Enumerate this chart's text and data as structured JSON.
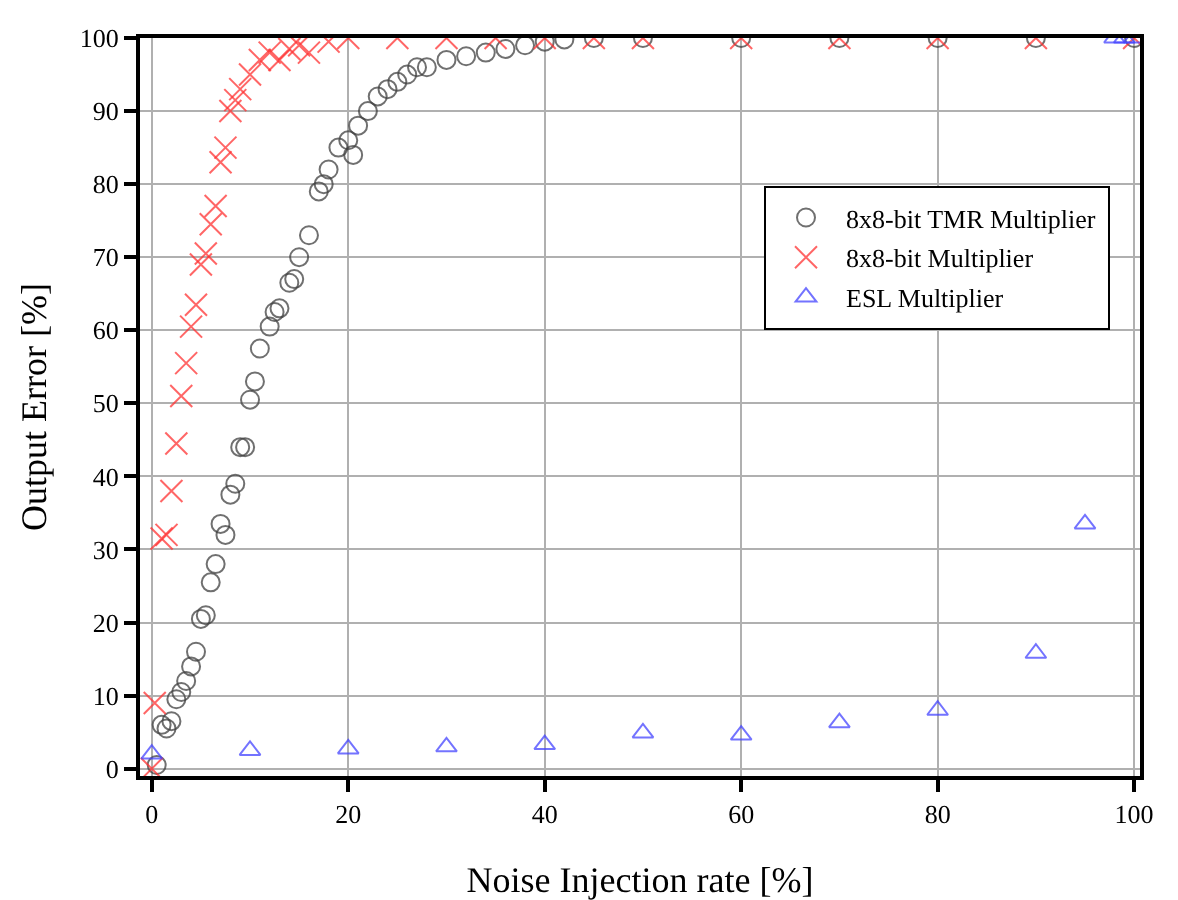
{
  "chart_data": {
    "type": "scatter",
    "xlabel": "Noise Injection rate [%]",
    "ylabel": "Output Error [%]",
    "xlim": [
      -1.2,
      100.6
    ],
    "ylim": [
      -1,
      100
    ],
    "xticks": [
      0,
      20,
      40,
      60,
      80,
      100
    ],
    "yticks": [
      0,
      10,
      20,
      30,
      40,
      50,
      60,
      70,
      80,
      90,
      100
    ],
    "grid": true,
    "legend": "top right",
    "series": [
      {
        "name": "8x8-bit TMR Multiplier",
        "color": "#404040",
        "marker": "circle",
        "x": [
          0.5,
          1,
          1.5,
          2,
          2.5,
          3,
          3.5,
          4,
          4.5,
          5,
          5.5,
          6,
          6.5,
          7,
          7.5,
          8,
          8.5,
          9,
          9.5,
          10,
          10.5,
          11,
          12,
          12.5,
          13,
          14,
          14.5,
          15,
          16,
          17,
          17.5,
          18,
          19,
          20,
          20.5,
          21,
          22,
          23,
          24,
          25,
          26,
          27,
          28,
          30,
          32,
          34,
          36,
          38,
          40,
          42,
          45,
          50,
          60,
          70,
          80,
          90,
          100
        ],
        "values": [
          0.5,
          6,
          5.5,
          6.5,
          9.5,
          10.5,
          12,
          14,
          16,
          20.5,
          21,
          25.5,
          28,
          33.5,
          32,
          37.5,
          39,
          44,
          44,
          50.5,
          53,
          57.5,
          60.5,
          62.5,
          63,
          66.5,
          67,
          70,
          73,
          79,
          80,
          82,
          85,
          86,
          84,
          88,
          90,
          92,
          93,
          94,
          95,
          96,
          96,
          97,
          97.5,
          98,
          98.5,
          99,
          99.5,
          99.8,
          100,
          100,
          100,
          100,
          100,
          100,
          100
        ]
      },
      {
        "name": "8x8-bit Multiplier",
        "color": "#ff3333",
        "marker": "cross",
        "x": [
          0,
          0.3,
          1,
          1.5,
          2,
          2.5,
          3,
          3.5,
          4,
          4.5,
          5,
          5.5,
          6,
          6.5,
          7,
          7.5,
          8,
          8.5,
          9,
          10,
          11,
          12,
          13,
          14,
          15,
          16,
          18,
          20,
          25,
          30,
          35,
          40,
          45,
          50,
          60,
          70,
          80,
          90,
          100
        ],
        "values": [
          0,
          9,
          31.5,
          32,
          38,
          44.5,
          51,
          55.5,
          60.5,
          63.5,
          69,
          70.5,
          74.5,
          77,
          83,
          85,
          90,
          91.5,
          93,
          95,
          97,
          98,
          97,
          98.5,
          99,
          98,
          99.5,
          100,
          100,
          100,
          100,
          100,
          100,
          100,
          100,
          100,
          100,
          100,
          100
        ]
      },
      {
        "name": "ESL Multiplier",
        "color": "#4444ff",
        "marker": "triangle",
        "x": [
          0,
          10,
          20,
          30,
          40,
          50,
          60,
          70,
          80,
          90,
          95,
          98,
          99,
          100
        ],
        "values": [
          2,
          2.5,
          2.7,
          3,
          3.3,
          4.9,
          4.6,
          6.3,
          8,
          15.8,
          33.5,
          100,
          100,
          100
        ]
      }
    ]
  }
}
